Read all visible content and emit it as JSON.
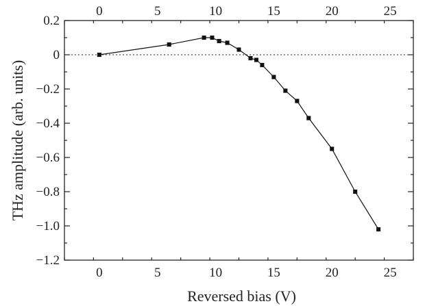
{
  "chart_data": {
    "type": "line",
    "xlabel": "Reversed bias (V)",
    "ylabel": "THz amplitude (arb. units)",
    "xlim": [
      -3,
      27
    ],
    "ylim": [
      -1.2,
      0.2
    ],
    "x_ticks": [
      0,
      5,
      10,
      15,
      20,
      25
    ],
    "x_tick_labels": [
      "0",
      "5",
      "10",
      "15",
      "20",
      "25"
    ],
    "x_top_ticks": [
      0,
      5,
      10,
      15,
      20,
      25
    ],
    "x_top_tick_labels": [
      "0",
      "5",
      "10",
      "15",
      "20",
      "25"
    ],
    "y_ticks": [
      0.2,
      0,
      -0.2,
      -0.4,
      -0.6,
      -0.8,
      -1.0,
      -1.2
    ],
    "y_tick_labels": [
      "0.2",
      "0",
      "−0.2",
      "−0.4",
      "−0.6",
      "−0.8",
      "−1.0",
      "−1.2"
    ],
    "reference_line": {
      "y": 0,
      "style": "dotted"
    },
    "grid": false,
    "series": [
      {
        "x": [
          0,
          6,
          9,
          9.7,
          10.3,
          11,
          12,
          13,
          13.5,
          14,
          15,
          16,
          17,
          18,
          20,
          22,
          24
        ],
        "y": [
          0.0,
          0.06,
          0.1,
          0.1,
          0.08,
          0.07,
          0.03,
          -0.02,
          -0.03,
          -0.06,
          -0.13,
          -0.21,
          -0.27,
          -0.37,
          -0.55,
          -0.8,
          -1.02
        ],
        "y_err": [
          0.01,
          0.01,
          0.01,
          0.01,
          0.01,
          0.01,
          0.01,
          0.01,
          0.01,
          0.01,
          0.01,
          0.01,
          0.01,
          0.01,
          0.01,
          0.01,
          0.01
        ],
        "marker": "square",
        "color": "#111111"
      }
    ]
  }
}
